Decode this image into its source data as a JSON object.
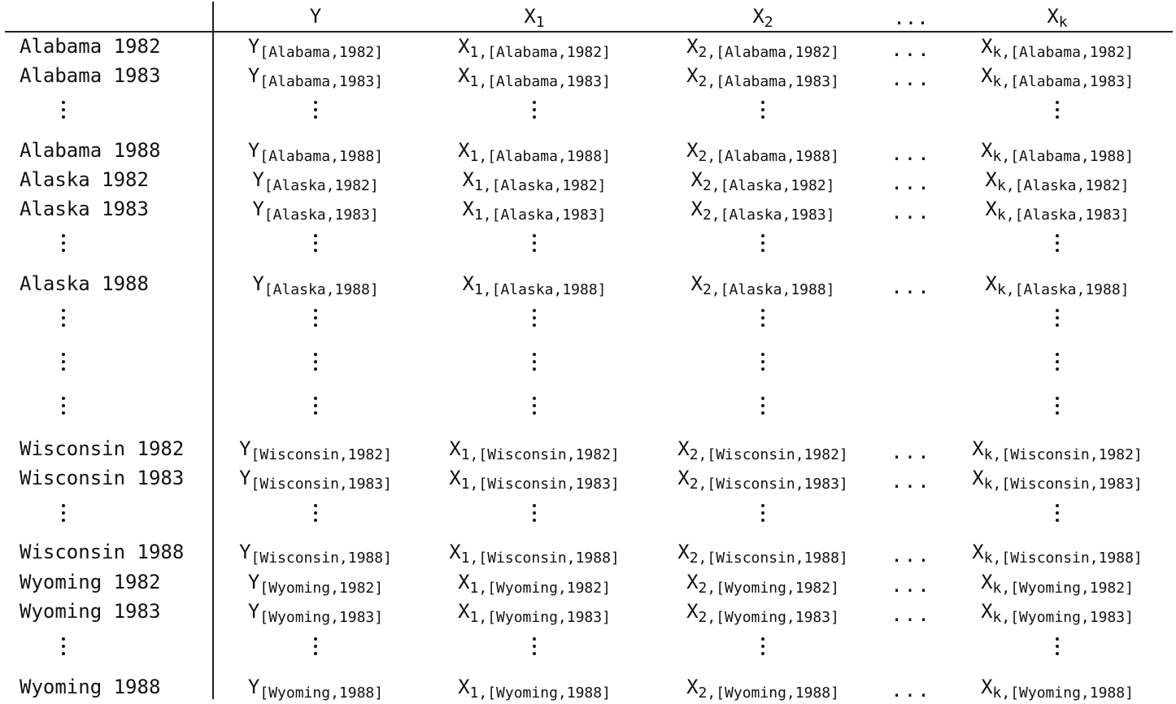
{
  "table": {
    "columns": [
      {
        "base": "Y",
        "sub": ""
      },
      {
        "base": "X",
        "sub": "1"
      },
      {
        "base": "X",
        "sub": "2"
      },
      {
        "ellipsis": "..."
      },
      {
        "base": "X",
        "sub": "k"
      }
    ],
    "rows": [
      {
        "label": "Alabama 1982",
        "key": "[Alabama,1982]"
      },
      {
        "label": "Alabama 1983",
        "key": "[Alabama,1983]"
      },
      {
        "vdots": true
      },
      {
        "label": "Alabama 1988",
        "key": "[Alabama,1988]"
      },
      {
        "label": "Alaska 1982",
        "key": "[Alaska,1982]"
      },
      {
        "label": "Alaska 1983",
        "key": "[Alaska,1983]"
      },
      {
        "vdots": true
      },
      {
        "label": "Alaska 1988",
        "key": "[Alaska,1988]"
      },
      {
        "vdots": true
      },
      {
        "vdots": true
      },
      {
        "vdots": true
      },
      {
        "label": "Wisconsin 1982",
        "key": "[Wisconsin,1982]"
      },
      {
        "label": "Wisconsin 1983",
        "key": "[Wisconsin,1983]"
      },
      {
        "vdots": true
      },
      {
        "label": "Wisconsin 1988",
        "key": "[Wisconsin,1988]"
      },
      {
        "label": "Wyoming 1982",
        "key": "[Wyoming,1982]"
      },
      {
        "label": "Wyoming 1983",
        "key": "[Wyoming,1983]"
      },
      {
        "vdots": true
      },
      {
        "label": "Wyoming 1988",
        "key": "[Wyoming,1988]"
      }
    ]
  }
}
